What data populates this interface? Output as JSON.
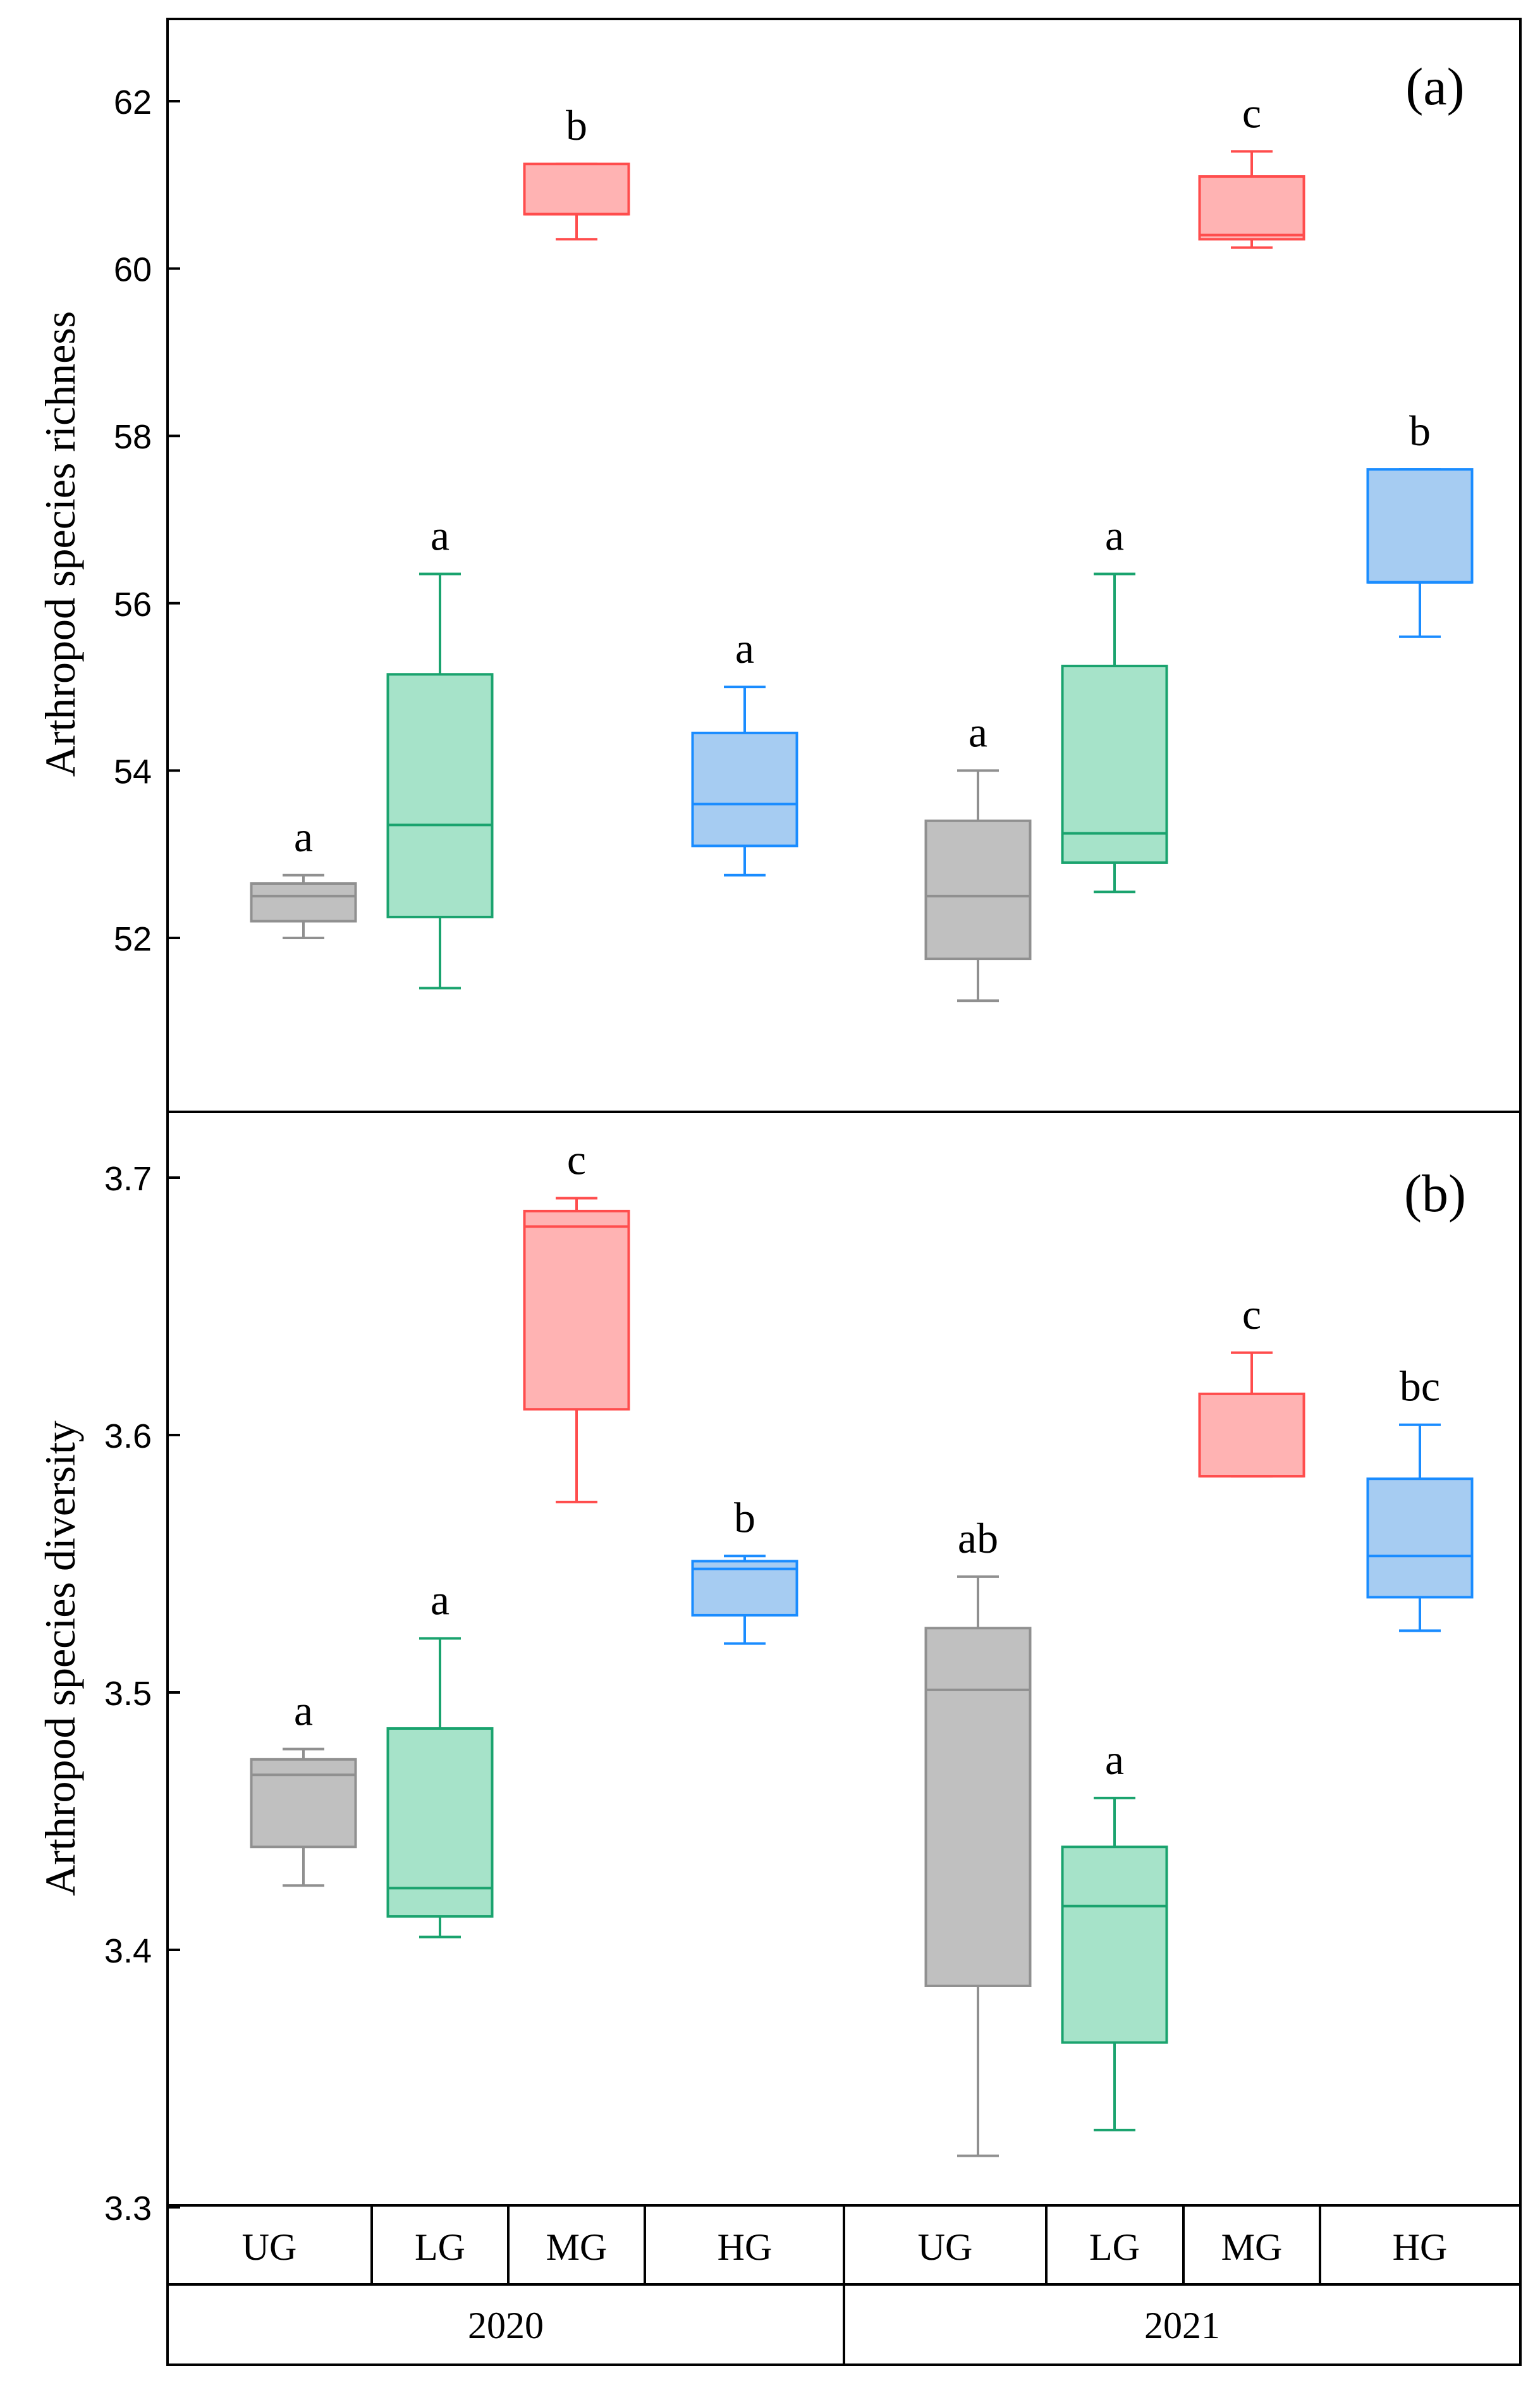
{
  "chart_data": [
    {
      "type": "box",
      "panel_label": "(a)",
      "ylabel": "Arthropod species richness",
      "ylim": [
        50,
        63
      ],
      "yticks": [
        52,
        54,
        56,
        58,
        60,
        62
      ],
      "ytick_labels": [
        "52",
        "54",
        "56",
        "58",
        "60",
        "62"
      ],
      "boxes": [
        {
          "year": "2020",
          "group": "UG",
          "color": "#909090",
          "fill": "#c0c0c0",
          "whisker_low": 52.0,
          "q1": 52.2,
          "median": 52.5,
          "q3": 52.65,
          "whisker_high": 52.75,
          "letter": "a"
        },
        {
          "year": "2020",
          "group": "LG",
          "color": "#1aa36e",
          "fill": "#a6e3c9",
          "whisker_low": 51.4,
          "q1": 52.25,
          "median": 53.35,
          "q3": 55.15,
          "whisker_high": 56.35,
          "letter": "a"
        },
        {
          "year": "2020",
          "group": "MG",
          "color": "#ff4d4d",
          "fill": "#ffb3b3",
          "whisker_low": 60.35,
          "q1": 60.65,
          "median": 60.65,
          "q3": 61.25,
          "whisker_high": 61.25,
          "letter": "b"
        },
        {
          "year": "2020",
          "group": "HG",
          "color": "#1a8cff",
          "fill": "#a6ccf2",
          "whisker_low": 52.75,
          "q1": 53.1,
          "median": 53.6,
          "q3": 54.45,
          "whisker_high": 55.0,
          "letter": "a"
        },
        {
          "year": "2021",
          "group": "UG",
          "color": "#909090",
          "fill": "#c0c0c0",
          "whisker_low": 51.25,
          "q1": 51.75,
          "median": 52.5,
          "q3": 53.4,
          "whisker_high": 54.0,
          "letter": "a"
        },
        {
          "year": "2021",
          "group": "LG",
          "color": "#1aa36e",
          "fill": "#a6e3c9",
          "whisker_low": 52.55,
          "q1": 52.9,
          "median": 53.25,
          "q3": 55.25,
          "whisker_high": 56.35,
          "letter": "a"
        },
        {
          "year": "2021",
          "group": "MG",
          "color": "#ff4d4d",
          "fill": "#ffb3b3",
          "whisker_low": 60.25,
          "q1": 60.35,
          "median": 60.4,
          "q3": 61.1,
          "whisker_high": 61.4,
          "letter": "c"
        },
        {
          "year": "2021",
          "group": "HG",
          "color": "#1a8cff",
          "fill": "#a6ccf2",
          "whisker_low": 55.6,
          "q1": 56.25,
          "median": 56.25,
          "q3": 57.6,
          "whisker_high": 57.6,
          "letter": "b"
        }
      ]
    },
    {
      "type": "box",
      "panel_label": "(b)",
      "ylabel": "Arthropod species diversity",
      "ylim": [
        3.3,
        3.725
      ],
      "yticks": [
        3.3,
        3.4,
        3.5,
        3.6,
        3.7
      ],
      "ytick_labels": [
        "3.3",
        "3.4",
        "3.5",
        "3.6",
        "3.7"
      ],
      "boxes": [
        {
          "year": "2020",
          "group": "UG",
          "color": "#909090",
          "fill": "#c0c0c0",
          "whisker_low": 3.425,
          "q1": 3.44,
          "median": 3.468,
          "q3": 3.474,
          "whisker_high": 3.478,
          "letter": "a"
        },
        {
          "year": "2020",
          "group": "LG",
          "color": "#1aa36e",
          "fill": "#a6e3c9",
          "whisker_low": 3.405,
          "q1": 3.413,
          "median": 3.424,
          "q3": 3.486,
          "whisker_high": 3.521,
          "letter": "a"
        },
        {
          "year": "2020",
          "group": "MG",
          "color": "#ff4d4d",
          "fill": "#ffb3b3",
          "whisker_low": 3.574,
          "q1": 3.61,
          "median": 3.681,
          "q3": 3.687,
          "whisker_high": 3.692,
          "letter": "c"
        },
        {
          "year": "2020",
          "group": "HG",
          "color": "#1a8cff",
          "fill": "#a6ccf2",
          "whisker_low": 3.519,
          "q1": 3.53,
          "median": 3.548,
          "q3": 3.551,
          "whisker_high": 3.553,
          "letter": "b"
        },
        {
          "year": "2021",
          "group": "UG",
          "color": "#909090",
          "fill": "#c0c0c0",
          "whisker_low": 3.32,
          "q1": 3.386,
          "median": 3.501,
          "q3": 3.525,
          "whisker_high": 3.545,
          "letter": "ab"
        },
        {
          "year": "2021",
          "group": "LG",
          "color": "#1aa36e",
          "fill": "#a6e3c9",
          "whisker_low": 3.33,
          "q1": 3.364,
          "median": 3.417,
          "q3": 3.44,
          "whisker_high": 3.459,
          "letter": "a"
        },
        {
          "year": "2021",
          "group": "MG",
          "color": "#ff4d4d",
          "fill": "#ffb3b3",
          "whisker_low": 3.584,
          "q1": 3.584,
          "median": 3.584,
          "q3": 3.616,
          "whisker_high": 3.632,
          "letter": "c"
        },
        {
          "year": "2021",
          "group": "HG",
          "color": "#1a8cff",
          "fill": "#a6ccf2",
          "whisker_low": 3.524,
          "q1": 3.537,
          "median": 3.553,
          "q3": 3.583,
          "whisker_high": 3.604,
          "letter": "bc"
        }
      ]
    }
  ],
  "x_axis": {
    "groups": [
      "UG",
      "LG",
      "MG",
      "HG",
      "UG",
      "LG",
      "MG",
      "HG"
    ],
    "years": [
      "2020",
      "2021"
    ]
  }
}
